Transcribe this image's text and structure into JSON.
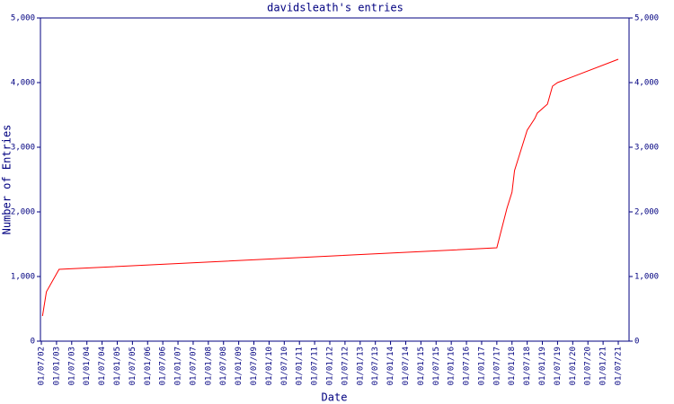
{
  "chart_data": {
    "type": "line",
    "title": "davidsleath's entries",
    "x_label": "Date",
    "y_label": "Number of Entries",
    "x": [
      "15/07/02",
      "01/09/02",
      "01/02/03",
      "01/07/17",
      "01/11/17",
      "01/01/18",
      "01/02/18",
      "01/04/18",
      "01/07/18",
      "01/10/18",
      "01/11/18",
      "01/03/19",
      "01/05/19",
      "01/07/19",
      "01/07/21"
    ],
    "series": [
      {
        "name": "davidsleath",
        "color": "#ff0000",
        "values": [
          389,
          764,
          1111,
          1444,
          2056,
          2306,
          2639,
          2889,
          3264,
          3444,
          3528,
          3667,
          3944,
          4000,
          4361
        ]
      }
    ],
    "xlim": [
      "01/07/02",
      "01/07/21"
    ],
    "xticks": [
      "01/07/02",
      "01/01/03",
      "01/07/03",
      "01/01/04",
      "01/07/04",
      "01/01/05",
      "01/07/05",
      "01/01/06",
      "01/07/06",
      "01/01/07",
      "01/07/07",
      "01/01/08",
      "01/07/08",
      "01/01/09",
      "01/07/09",
      "01/01/10",
      "01/07/10",
      "01/01/11",
      "01/07/11",
      "01/01/12",
      "01/07/12",
      "01/01/13",
      "01/07/13",
      "01/01/14",
      "01/07/14",
      "01/01/15",
      "01/07/15",
      "01/01/16",
      "01/07/16",
      "01/01/17",
      "01/07/17",
      "01/01/18",
      "01/07/18",
      "01/01/19",
      "01/07/19",
      "01/01/20",
      "01/07/20",
      "01/01/21",
      "01/07/21"
    ],
    "ylim": [
      0,
      5000
    ],
    "yticks": [
      0,
      {
        "value": 1000,
        "label": "1,000"
      },
      {
        "value": 2000,
        "label": "2,000"
      },
      {
        "value": 3000,
        "label": "3,000"
      },
      {
        "value": 4000,
        "label": "4,000"
      },
      {
        "value": 5000,
        "label": "5,000"
      }
    ],
    "grid": false
  }
}
